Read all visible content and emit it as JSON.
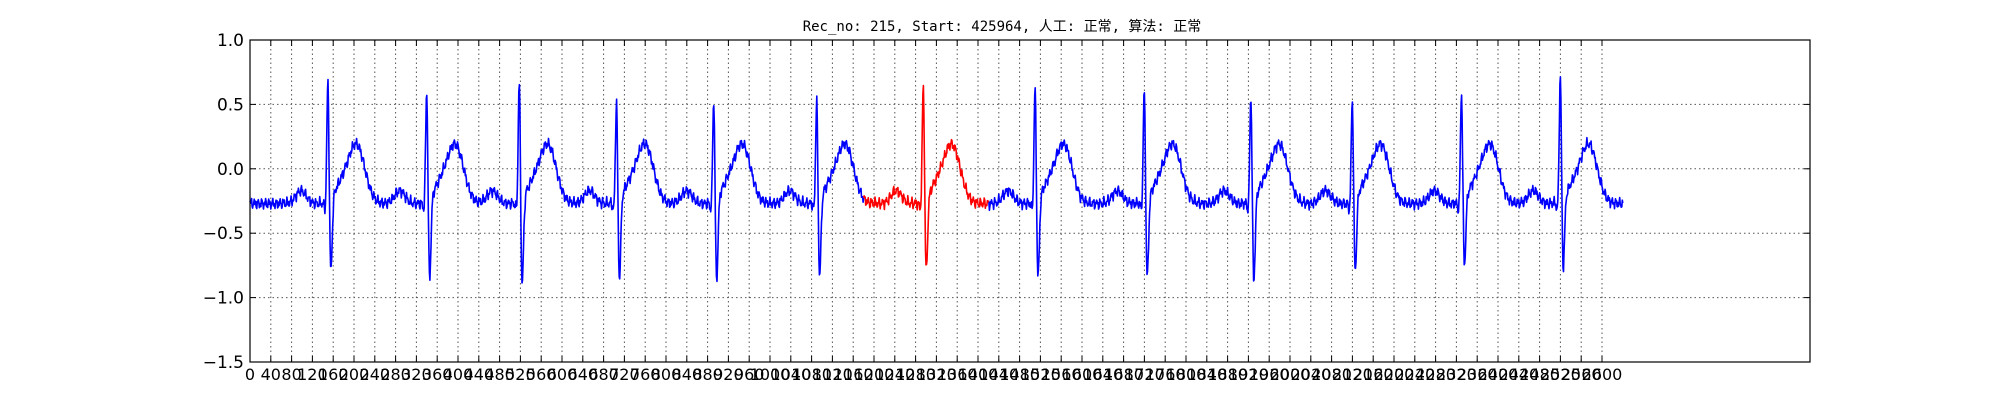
{
  "chart_data": {
    "type": "line",
    "title": "Rec_no: 215, Start: 425964, 人工: 正常, 算法: 正常",
    "xlabel": "",
    "ylabel": "",
    "xlim": [
      0,
      3000
    ],
    "ylim": [
      -1.5,
      1.0
    ],
    "yticks": [
      1.0,
      0.5,
      0.0,
      -0.5,
      -1.0,
      -1.5
    ],
    "ytick_labels": [
      "1.0",
      "0.5",
      "0.0",
      "−0.5",
      "−1.0",
      "−1.5"
    ],
    "xticks": [
      0,
      40,
      80,
      120,
      160,
      200,
      240,
      280,
      320,
      360,
      400,
      440,
      480,
      520,
      560,
      600,
      640,
      680,
      720,
      760,
      800,
      840,
      880,
      920,
      960,
      1000,
      1040,
      1080,
      1120,
      1160,
      1200,
      1240,
      1280,
      1320,
      1360,
      1400,
      1440,
      1480,
      1520,
      1560,
      1600,
      1640,
      1680,
      1720,
      1760,
      1800,
      1840,
      1880,
      1920,
      1960,
      2000,
      2040,
      2080,
      2120,
      2160,
      2200,
      2240,
      2280,
      2320,
      2360,
      2400,
      2440,
      2480,
      2520,
      2560,
      2600
    ],
    "xtick_labels": [
      "0",
      "40",
      "80",
      "120",
      "160",
      "200",
      "240",
      "280",
      "320",
      "360",
      "400",
      "440",
      "480",
      "520",
      "560",
      "600",
      "640",
      "680",
      "720",
      "760",
      "800",
      "840",
      "880",
      "920",
      "960",
      "1000",
      "1040",
      "1080",
      "1120",
      "1160",
      "1200",
      "1240",
      "1280",
      "1320",
      "1360",
      "1400",
      "1440",
      "1480",
      "1520",
      "1560",
      "1600",
      "1640",
      "1680",
      "1720",
      "1760",
      "1800",
      "1840",
      "1880",
      "1920",
      "1960",
      "2000",
      "2040",
      "2080",
      "2120",
      "2160",
      "2200",
      "2240",
      "2280",
      "2320",
      "2360",
      "2400",
      "2440",
      "2480",
      "2520",
      "2560",
      "2600"
    ],
    "grid": true,
    "x_end": 2640,
    "highlight_range": [
      1180,
      1420
    ],
    "beats": [
      {
        "r": 150,
        "r_amp": 0.8,
        "s_amp": -0.9
      },
      {
        "r": 340,
        "r_amp": 0.74,
        "s_amp": -0.95
      },
      {
        "r": 518,
        "r_amp": 0.8,
        "s_amp": -1.0
      },
      {
        "r": 705,
        "r_amp": 0.66,
        "s_amp": -0.95
      },
      {
        "r": 892,
        "r_amp": 0.66,
        "s_amp": -0.95
      },
      {
        "r": 1090,
        "r_amp": 0.66,
        "s_amp": -0.93
      },
      {
        "r": 1295,
        "r_amp": 0.77,
        "s_amp": -0.9
      },
      {
        "r": 1510,
        "r_amp": 0.76,
        "s_amp": -0.95
      },
      {
        "r": 1720,
        "r_amp": 0.74,
        "s_amp": -0.95
      },
      {
        "r": 1925,
        "r_amp": 0.7,
        "s_amp": -0.97
      },
      {
        "r": 2120,
        "r_amp": 0.66,
        "s_amp": -0.9
      },
      {
        "r": 2330,
        "r_amp": 0.71,
        "s_amp": -0.85
      },
      {
        "r": 2520,
        "r_amp": 0.85,
        "s_amp": -0.87
      }
    ],
    "series": [
      {
        "color": "#0000ff"
      },
      {
        "color": "#ff0000"
      }
    ]
  }
}
